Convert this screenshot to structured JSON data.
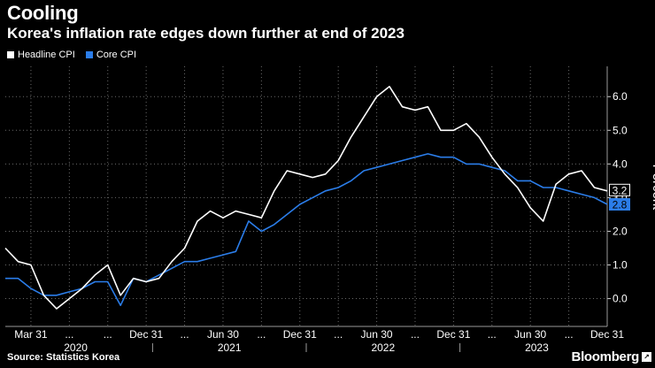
{
  "header": {
    "title": "Cooling",
    "subtitle": "Korea's inflation rate edges down further at end of 2023"
  },
  "legend": {
    "items": [
      {
        "label": "Headline CPI",
        "color": "#ffffff"
      },
      {
        "label": "Core CPI",
        "color": "#2b7de9"
      }
    ]
  },
  "footer": {
    "source": "Source: Statistics Korea",
    "brand": "Bloomberg",
    "brand_icon_glyph": "↗"
  },
  "chart_data": {
    "type": "line",
    "title": "Cooling",
    "ylabel": "Percent",
    "ylim": [
      -0.8,
      6.9
    ],
    "y_ticks": [
      "6.0",
      "5.0",
      "4.0",
      "3.0",
      "2.0",
      "1.0",
      "0.0"
    ],
    "y_tick_values": [
      6,
      5,
      4,
      3,
      2,
      1,
      0
    ],
    "x_ticks": [
      {
        "label": "Mar 31",
        "month": 2
      },
      {
        "label": "...",
        "month": 5
      },
      {
        "label": "...",
        "month": 8
      },
      {
        "label": "Dec 31",
        "month": 11
      },
      {
        "label": "...",
        "month": 14
      },
      {
        "label": "Jun 30",
        "month": 17
      },
      {
        "label": "...",
        "month": 20
      },
      {
        "label": "Dec 31",
        "month": 23
      },
      {
        "label": "...",
        "month": 26
      },
      {
        "label": "Jun 30",
        "month": 29
      },
      {
        "label": "...",
        "month": 32
      },
      {
        "label": "Dec 31",
        "month": 35
      },
      {
        "label": "...",
        "month": 38
      },
      {
        "label": "Jun 30",
        "month": 41
      },
      {
        "label": "...",
        "month": 44
      },
      {
        "label": "Dec 31",
        "month": 47
      }
    ],
    "year_labels": [
      {
        "label": "2020",
        "month": 5.5
      },
      {
        "label": "2021",
        "month": 17.5
      },
      {
        "label": "2022",
        "month": 29.5
      },
      {
        "label": "2023",
        "month": 41.5
      }
    ],
    "x_range": [
      0,
      47
    ],
    "x_unit": "month index from Jan 2020",
    "series": [
      {
        "name": "Headline CPI",
        "color": "#ffffff",
        "last_label": "3.2",
        "values": [
          1.5,
          1.1,
          1.0,
          0.1,
          -0.3,
          0.0,
          0.3,
          0.7,
          1.0,
          0.1,
          0.6,
          0.5,
          0.6,
          1.1,
          1.5,
          2.3,
          2.6,
          2.4,
          2.6,
          2.5,
          2.4,
          3.2,
          3.8,
          3.7,
          3.6,
          3.7,
          4.1,
          4.8,
          5.4,
          6.0,
          6.3,
          5.7,
          5.6,
          5.7,
          5.0,
          5.0,
          5.2,
          4.8,
          4.2,
          3.7,
          3.3,
          2.7,
          2.3,
          3.4,
          3.7,
          3.8,
          3.3,
          3.2
        ]
      },
      {
        "name": "Core CPI",
        "color": "#2b7de9",
        "last_label": "2.8",
        "values": [
          0.6,
          0.6,
          0.3,
          0.1,
          0.1,
          0.2,
          0.3,
          0.5,
          0.5,
          -0.2,
          0.6,
          0.5,
          0.7,
          0.9,
          1.1,
          1.1,
          1.2,
          1.3,
          1.4,
          2.3,
          2.0,
          2.2,
          2.5,
          2.8,
          3.0,
          3.2,
          3.3,
          3.5,
          3.8,
          3.9,
          4.0,
          4.1,
          4.2,
          4.3,
          4.2,
          4.2,
          4.0,
          4.0,
          3.9,
          3.8,
          3.5,
          3.5,
          3.3,
          3.3,
          3.2,
          3.1,
          3.0,
          2.8
        ]
      }
    ]
  }
}
